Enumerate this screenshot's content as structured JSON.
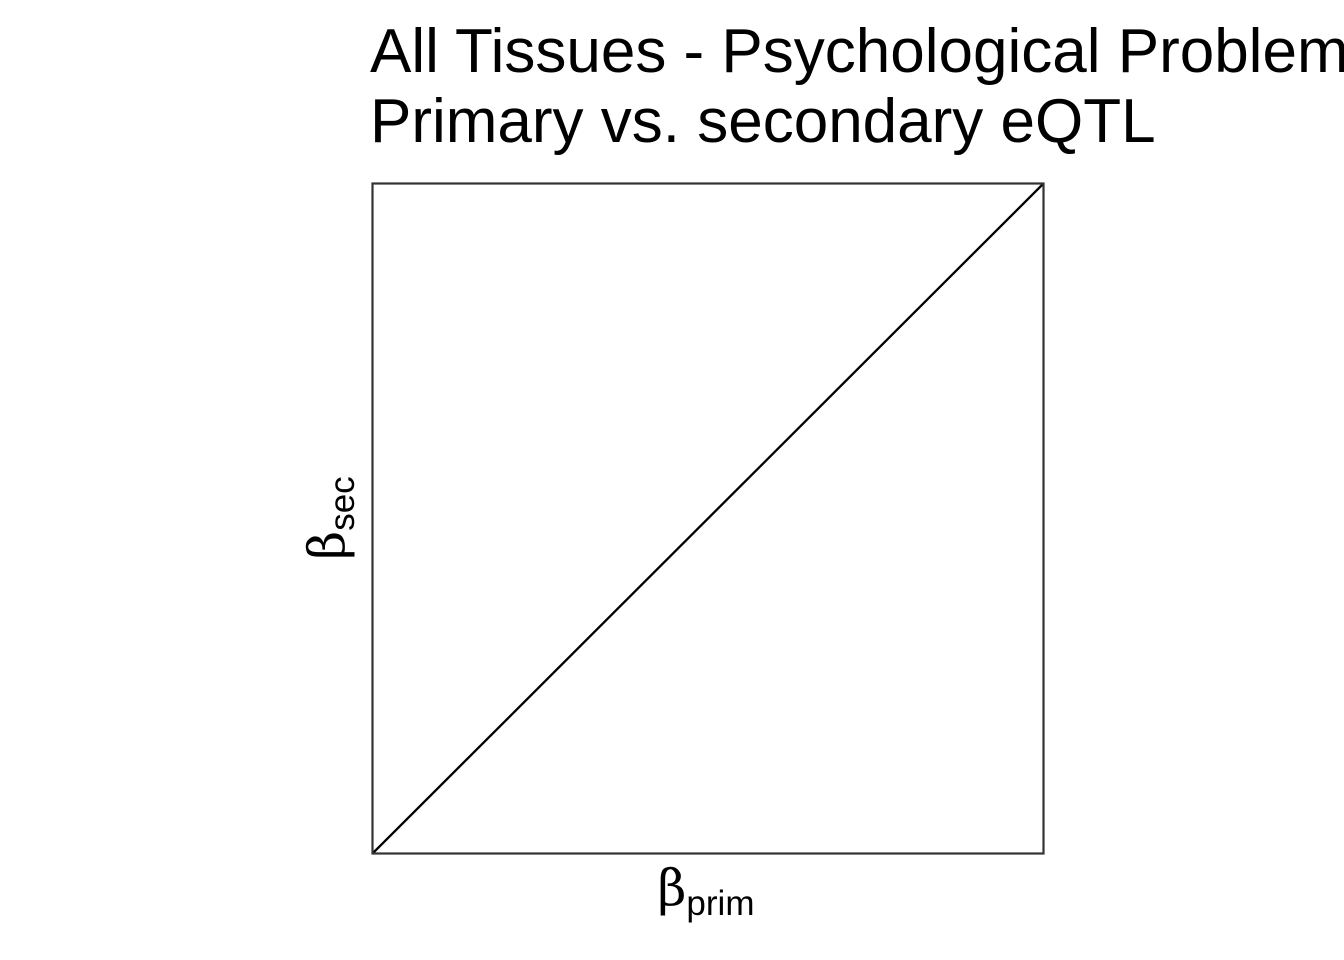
{
  "chart_data": {
    "type": "line",
    "title_lines": [
      "All Tissues - Psychological Problem",
      "Primary vs. secondary eQTL"
    ],
    "xlabel": {
      "symbol": "β",
      "subscript": "prim"
    },
    "ylabel": {
      "symbol": "β",
      "subscript": "sec"
    },
    "xlim": [
      0,
      1
    ],
    "ylim": [
      0,
      1
    ],
    "series": [
      {
        "x": [
          0,
          1
        ],
        "y": [
          0,
          1
        ]
      }
    ],
    "grid": false,
    "ticks": false,
    "colors": {
      "line": "#000000",
      "panel_border": "#333333",
      "background": "#ffffff"
    }
  }
}
